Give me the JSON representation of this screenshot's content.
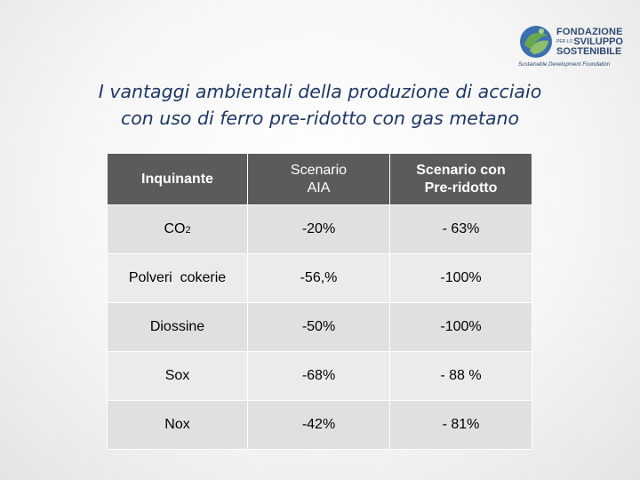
{
  "logo": {
    "line1": "FONDAZIONE",
    "line2_small": "PER LO",
    "line2": "SVILUPPO",
    "line3": "SOSTENIBILE",
    "tagline": "Sustainable Development Foundation",
    "icon": "globe-leaf-logo-icon",
    "colors": {
      "blue": "#2c4a72",
      "green": "#6aa84f"
    }
  },
  "title": {
    "line1": "I vantaggi ambientali  della produzione di acciaio",
    "line2": "con uso di ferro pre-ridotto con gas metano"
  },
  "table": {
    "headers": {
      "col1": "Inquinante",
      "col2_line1": "Scenario",
      "col2_line2": "AIA",
      "col3_line1": "Scenario con",
      "col3_line2": "Pre-ridotto"
    },
    "rows": [
      {
        "pollutant": "CO",
        "pollutant_sub": "2",
        "aia": "-20%",
        "preridotto": "- 63%"
      },
      {
        "pollutant": "Polveri  cokerie",
        "aia": "-56,%",
        "preridotto": "-100%"
      },
      {
        "pollutant": "Diossine",
        "aia": "-50%",
        "preridotto": "-100%"
      },
      {
        "pollutant": "Sox",
        "aia": "-68%",
        "preridotto": "- 88 %"
      },
      {
        "pollutant": "Nox",
        "aia": "-42%",
        "preridotto": "- 81%"
      }
    ],
    "colors": {
      "header_bg": "#5b5b5b",
      "row_bg": "#ebebeb"
    }
  }
}
